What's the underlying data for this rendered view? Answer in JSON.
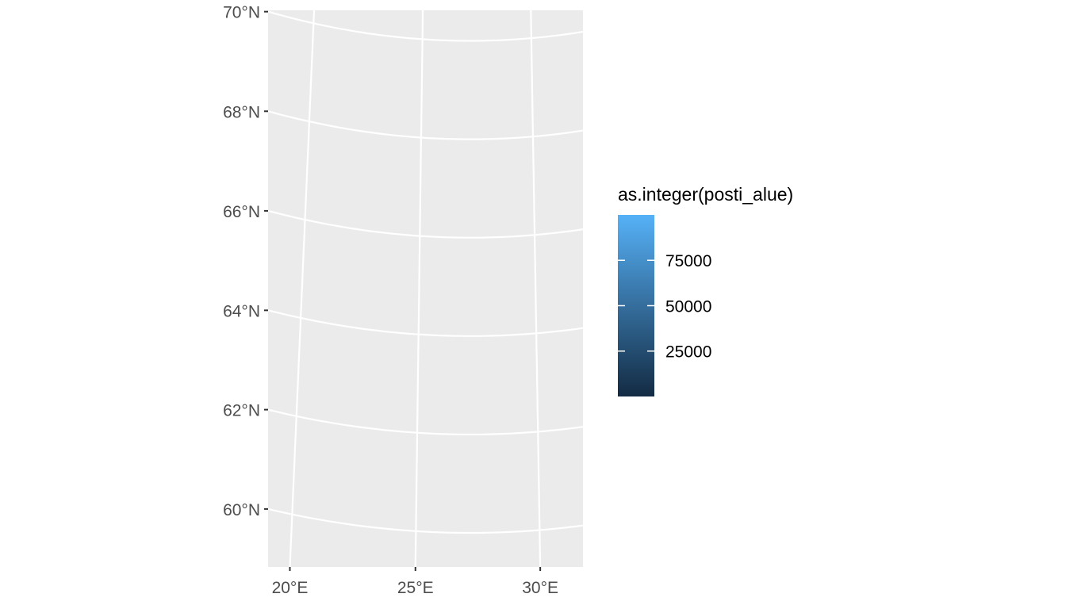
{
  "chart_data": {
    "type": "map",
    "projection": "conic (curved graticule)",
    "title": "",
    "xlabel": "",
    "ylabel": "",
    "x_ticks": [
      {
        "value": 20,
        "label": "20°E"
      },
      {
        "value": 25,
        "label": "25°E"
      },
      {
        "value": 30,
        "label": "30°E"
      }
    ],
    "y_ticks": [
      {
        "value": 60,
        "label": "60°N"
      },
      {
        "value": 62,
        "label": "62°N"
      },
      {
        "value": 64,
        "label": "64°N"
      },
      {
        "value": 66,
        "label": "66°N"
      },
      {
        "value": 68,
        "label": "68°N"
      },
      {
        "value": 70,
        "label": "70°N"
      }
    ],
    "xlim": [
      19.1,
      31.7
    ],
    "ylim": [
      59.3,
      70.3
    ],
    "grid": true,
    "panel_background": "#EBEBEB",
    "gridline_color": "#FFFFFF",
    "data_layers": [],
    "legend": {
      "title": "as.integer(posti_alue)",
      "type": "colorbar",
      "placement": "right",
      "low_color": "#132B43",
      "high_color": "#56B1F7",
      "range": [
        0,
        99999
      ],
      "breaks": [
        {
          "value": 25000,
          "label": "25000"
        },
        {
          "value": 50000,
          "label": "50000"
        },
        {
          "value": 75000,
          "label": "75000"
        }
      ]
    }
  }
}
